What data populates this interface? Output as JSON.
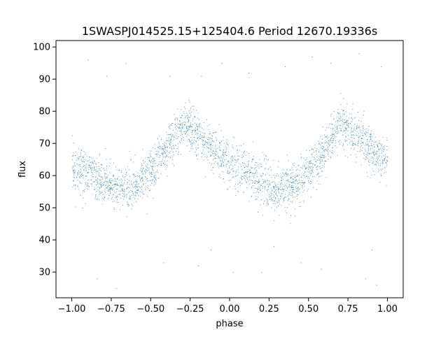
{
  "chart_data": {
    "type": "scatter",
    "title": "1SWASPJ014525.15+125404.6 Period 12670.19336s",
    "xlabel": "phase",
    "ylabel": "flux",
    "xlim": [
      -1.1,
      1.1
    ],
    "ylim": [
      22,
      102
    ],
    "x_ticks": [
      -1.0,
      -0.75,
      -0.5,
      -0.25,
      0.0,
      0.25,
      0.5,
      0.75,
      1.0
    ],
    "x_tick_labels": [
      "−1.00",
      "−0.75",
      "−0.50",
      "−0.25",
      "0.00",
      "0.25",
      "0.50",
      "0.75",
      "1.00"
    ],
    "y_ticks": [
      30,
      40,
      50,
      60,
      70,
      80,
      90,
      100
    ],
    "y_tick_labels": [
      "30",
      "40",
      "50",
      "60",
      "70",
      "80",
      "90",
      "100"
    ],
    "grid": false,
    "legend": "none",
    "series": [
      {
        "color": "#1f77b4",
        "phase_range": [
          -1.0,
          1.0
        ],
        "trend": {
          "x": [
            -1.0,
            -0.9,
            -0.8,
            -0.7,
            -0.6,
            -0.5,
            -0.45,
            -0.4,
            -0.35,
            -0.3,
            -0.25,
            -0.2,
            -0.1,
            0.0,
            0.1,
            0.2,
            0.3,
            0.4,
            0.5,
            0.55,
            0.6,
            0.65,
            0.7,
            0.75,
            0.8,
            0.9,
            1.0
          ],
          "y": [
            63,
            61,
            58,
            56,
            57,
            61,
            64,
            68,
            72,
            76,
            75,
            72,
            68,
            64,
            61,
            58,
            56,
            57,
            61,
            64,
            68,
            72,
            76,
            75,
            72,
            68,
            64
          ]
        },
        "scatter_spread": 3.5,
        "outliers": [
          [
            -0.9,
            96
          ],
          [
            -0.84,
            28
          ],
          [
            -0.78,
            91
          ],
          [
            -0.72,
            25
          ],
          [
            -0.66,
            95
          ],
          [
            -0.42,
            33
          ],
          [
            -0.38,
            91
          ],
          [
            -0.2,
            32
          ],
          [
            -0.18,
            91
          ],
          [
            -0.12,
            37
          ],
          [
            -0.05,
            95
          ],
          [
            0.02,
            30
          ],
          [
            0.12,
            92
          ],
          [
            0.2,
            30
          ],
          [
            0.28,
            38
          ],
          [
            0.35,
            94
          ],
          [
            0.45,
            33
          ],
          [
            0.52,
            97
          ],
          [
            0.58,
            31
          ],
          [
            0.64,
            95
          ],
          [
            0.82,
            98
          ],
          [
            0.86,
            28
          ],
          [
            0.9,
            37
          ],
          [
            0.93,
            26
          ],
          [
            0.96,
            94
          ]
        ]
      }
    ]
  }
}
